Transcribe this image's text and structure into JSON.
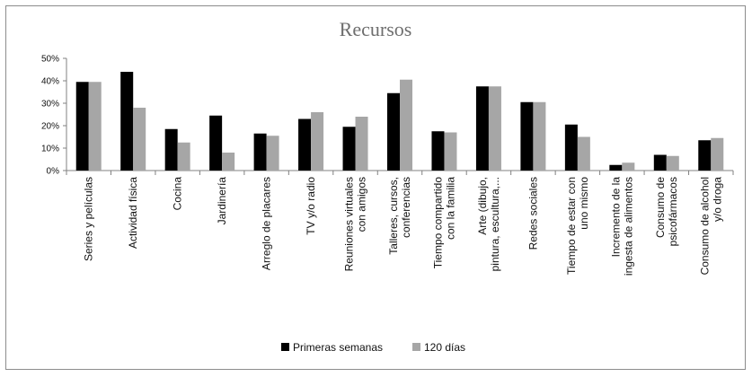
{
  "chart_data": {
    "type": "bar",
    "title": "Recursos",
    "xlabel": "",
    "ylabel": "",
    "ylim": [
      0,
      50
    ],
    "yticks": [
      "0%",
      "10%",
      "20%",
      "30%",
      "40%",
      "50%"
    ],
    "grid": false,
    "legend_position": "bottom",
    "categories": [
      [
        "Series y películas"
      ],
      [
        "Actividad física"
      ],
      [
        "Cocina"
      ],
      [
        "Jardinería"
      ],
      [
        "Arreglo de placares"
      ],
      [
        "TV y/o radio"
      ],
      [
        "Reuniones virtuales",
        "con amigos"
      ],
      [
        "Talleres, cursos,",
        "conferencias"
      ],
      [
        "Tiempo compartido",
        "con la familia"
      ],
      [
        "Arte (dibujo,",
        "pintura, escultura,..."
      ],
      [
        "Redes sociales"
      ],
      [
        "Tiempo de estar con",
        "uno mismo"
      ],
      [
        "Incremento de la",
        "ingesta de alimentos"
      ],
      [
        "Consumo de",
        "psicofármacos"
      ],
      [
        "Consumo de alcohol",
        "y/o droga"
      ]
    ],
    "series": [
      {
        "name": "Primeras semanas",
        "color": "#000000",
        "values": [
          39.5,
          44,
          18.5,
          24.5,
          16.5,
          23,
          19.5,
          34.5,
          17.5,
          37.5,
          30.5,
          20.5,
          2.5,
          7,
          13.5
        ]
      },
      {
        "name": "120 días",
        "color": "#a6a6a6",
        "values": [
          39.5,
          28,
          12.5,
          8,
          15.5,
          26,
          24,
          40.5,
          17,
          37.5,
          30.5,
          15,
          3.5,
          6.5,
          14.5
        ]
      }
    ]
  }
}
